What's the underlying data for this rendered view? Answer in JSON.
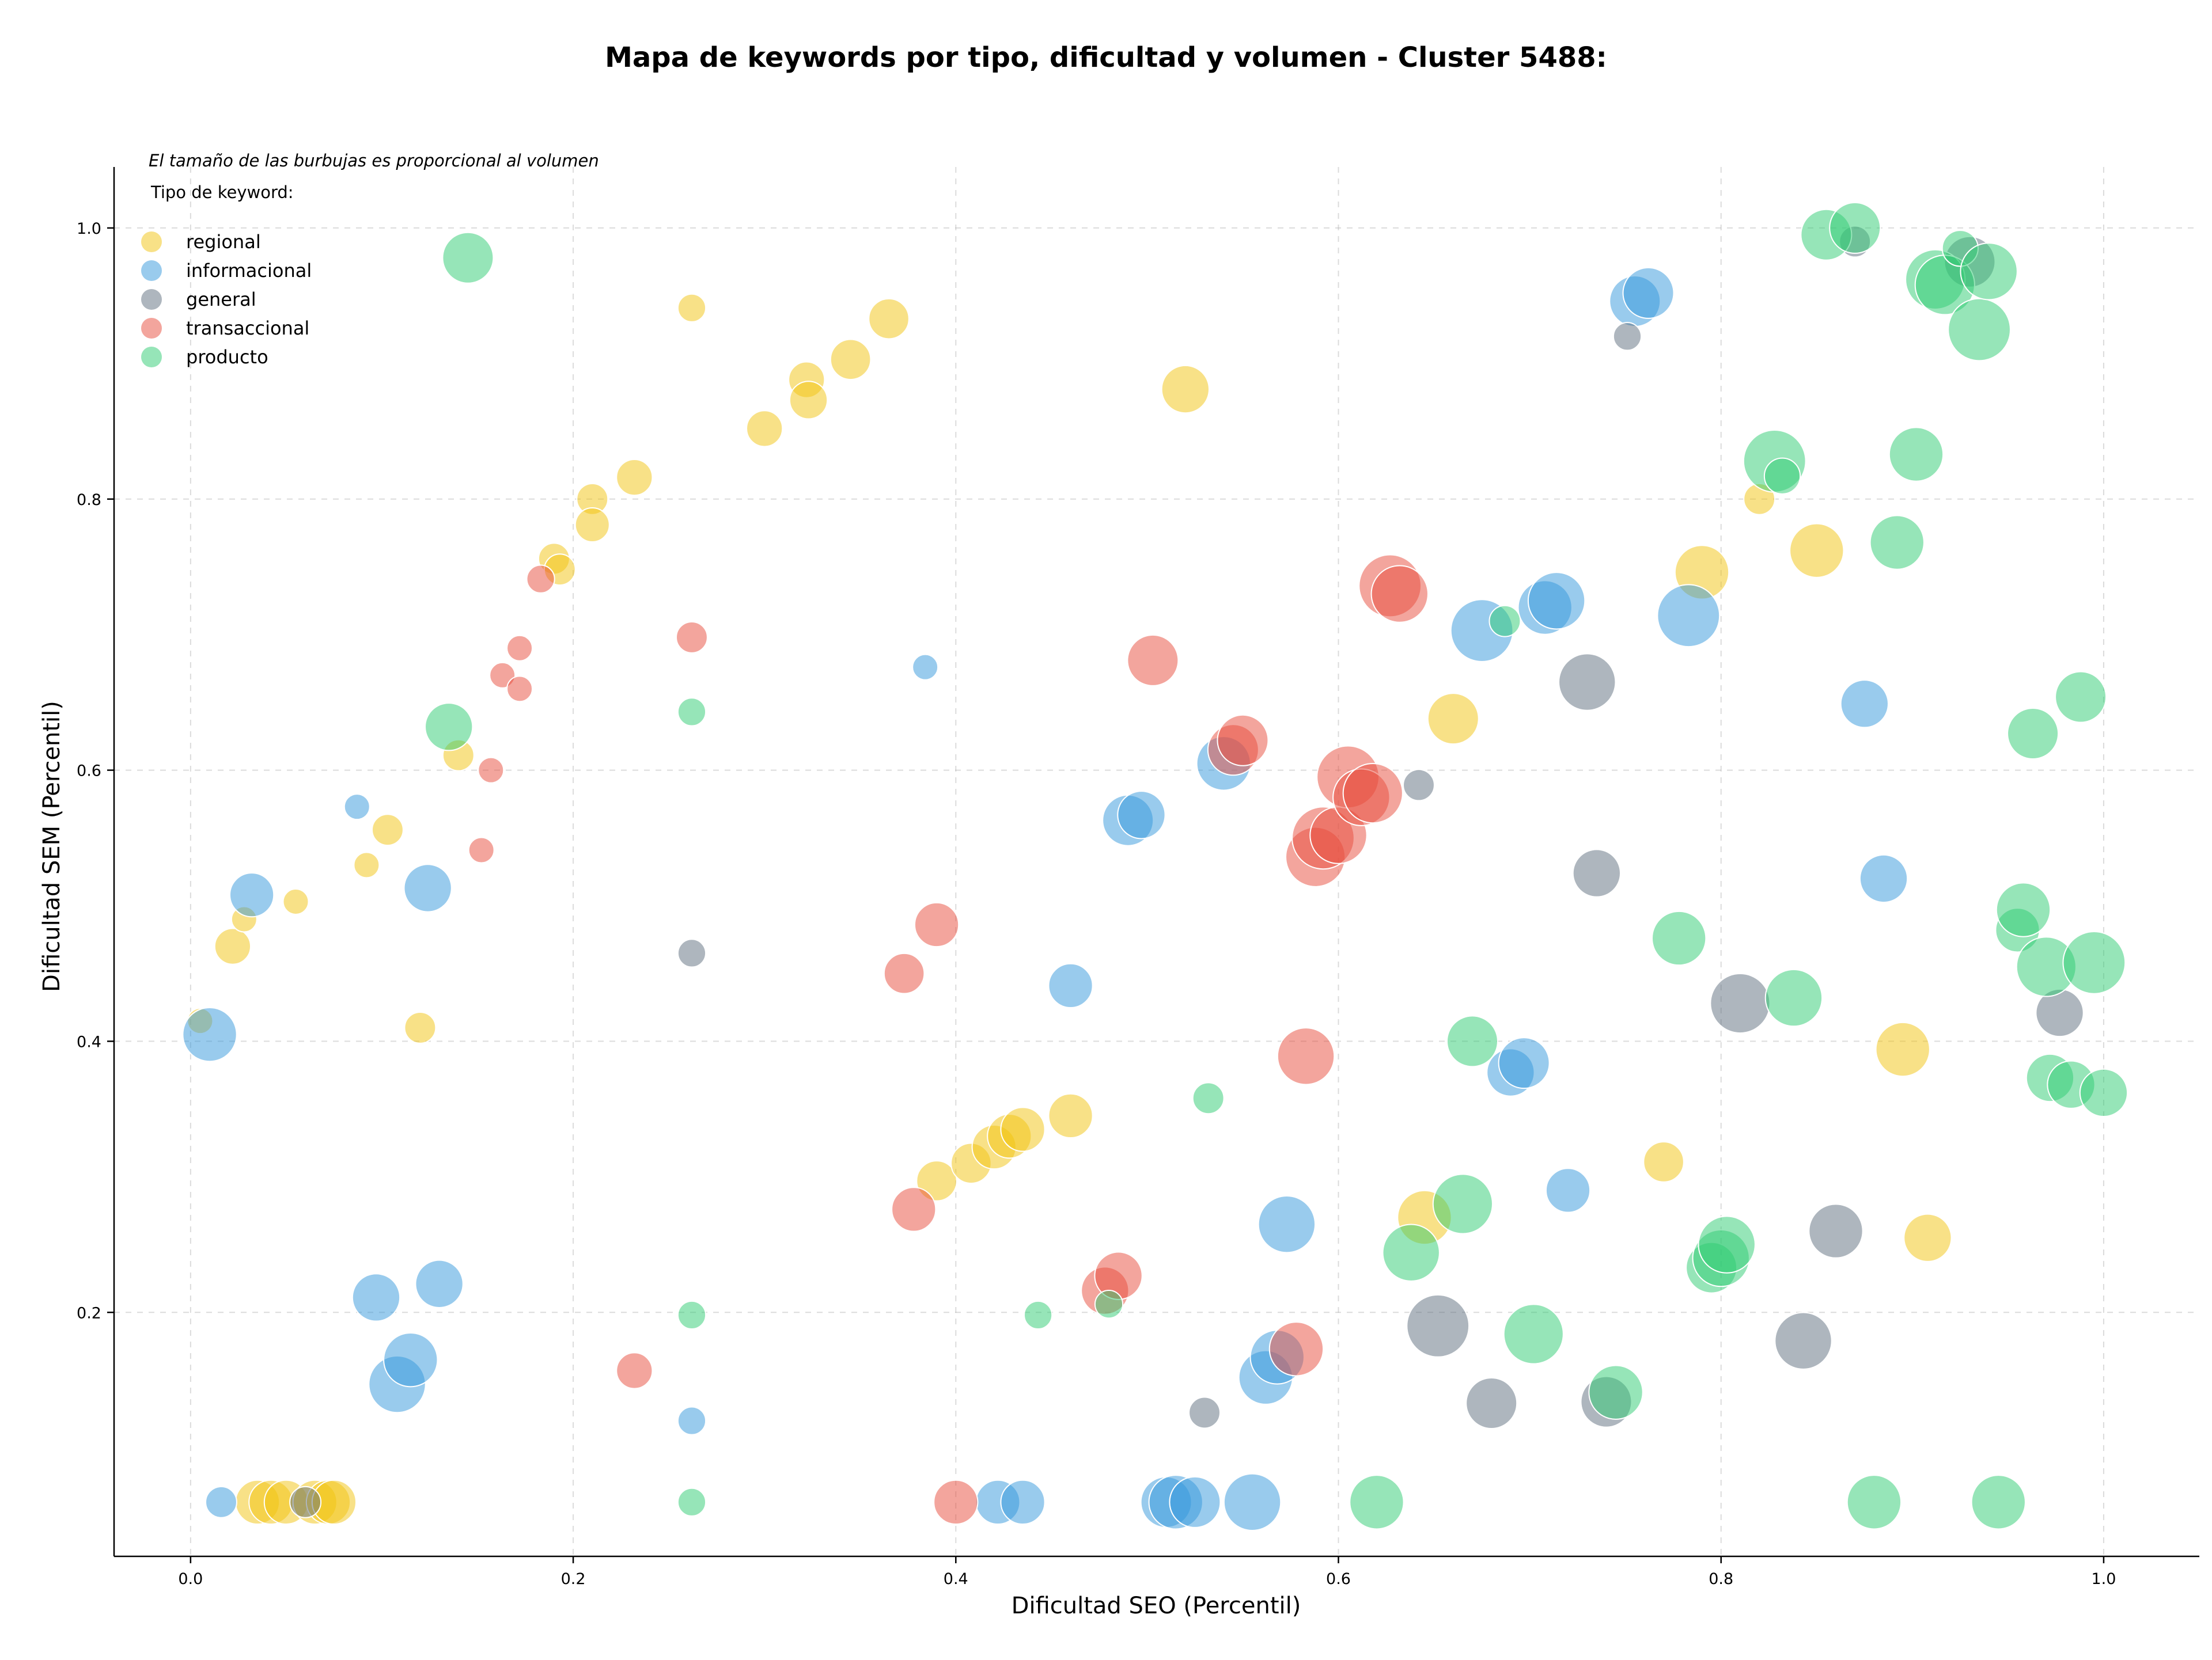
{
  "chart_data": {
    "type": "scatter",
    "title": "Mapa de keywords por tipo, dificultad y volumen - Cluster 5488:",
    "note": "El tamaño de las burbujas es proporcional al volumen",
    "xlabel": "Dificultad SEO (Percentil)",
    "ylabel": "Dificultad SEM (Percentil)",
    "xlim": [
      -0.04,
      1.05
    ],
    "ylim": [
      0.02,
      1.045
    ],
    "xticks": [
      "0.0",
      "0.2",
      "0.4",
      "0.6",
      "0.8",
      "1.0"
    ],
    "yticks": [
      "0.2",
      "0.4",
      "0.6",
      "0.8",
      "1.0"
    ],
    "grid": true,
    "legend": {
      "title": "Tipo de keyword:",
      "placement": "top-left",
      "items": [
        "regional",
        "informacional",
        "general",
        "transaccional",
        "producto"
      ]
    },
    "colors": {
      "regional": "#f1c40f",
      "informacional": "#3498db",
      "general": "#5d6d7e",
      "transaccional": "#e74c3c",
      "producto": "#2ecc71"
    },
    "series": [
      {
        "name": "regional",
        "points": [
          [
            0.005,
            0.415,
            1
          ],
          [
            0.022,
            0.47,
            2
          ],
          [
            0.028,
            0.49,
            1
          ],
          [
            0.055,
            0.503,
            1
          ],
          [
            0.092,
            0.53,
            1
          ],
          [
            0.103,
            0.556,
            1.5
          ],
          [
            0.12,
            0.41,
            1.5
          ],
          [
            0.14,
            0.611,
            1.5
          ],
          [
            0.19,
            0.756,
            1.5
          ],
          [
            0.193,
            0.748,
            1.5
          ],
          [
            0.21,
            0.8,
            1.5
          ],
          [
            0.21,
            0.781,
            1.8
          ],
          [
            0.232,
            0.816,
            2
          ],
          [
            0.262,
            0.941,
            1.2
          ],
          [
            0.3,
            0.852,
            2
          ],
          [
            0.322,
            0.888,
            2
          ],
          [
            0.323,
            0.873,
            2.2
          ],
          [
            0.345,
            0.903,
            2.5
          ],
          [
            0.365,
            0.933,
            2.5
          ],
          [
            0.52,
            0.881,
            3.5
          ],
          [
            0.39,
            0.297,
            2.5
          ],
          [
            0.408,
            0.31,
            2.5
          ],
          [
            0.42,
            0.322,
            3
          ],
          [
            0.428,
            0.33,
            3
          ],
          [
            0.435,
            0.335,
            3
          ],
          [
            0.46,
            0.345,
            3
          ],
          [
            0.035,
            0.06,
            3
          ],
          [
            0.042,
            0.06,
            3
          ],
          [
            0.05,
            0.06,
            3
          ],
          [
            0.065,
            0.06,
            3
          ],
          [
            0.072,
            0.06,
            3
          ],
          [
            0.075,
            0.06,
            3
          ],
          [
            0.645,
            0.27,
            4.5
          ],
          [
            0.66,
            0.638,
            4
          ],
          [
            0.77,
            0.311,
            2.5
          ],
          [
            0.79,
            0.746,
            4.5
          ],
          [
            0.82,
            0.8,
            1.5
          ],
          [
            0.85,
            0.762,
            4.5
          ],
          [
            0.895,
            0.394,
            4.5
          ],
          [
            0.908,
            0.255,
            3.5
          ]
        ]
      },
      {
        "name": "informacional",
        "points": [
          [
            0.01,
            0.405,
            4.5
          ],
          [
            0.016,
            0.06,
            1.5
          ],
          [
            0.032,
            0.508,
            3
          ],
          [
            0.087,
            0.573,
            1
          ],
          [
            0.097,
            0.211,
            3.5
          ],
          [
            0.108,
            0.147,
            5
          ],
          [
            0.115,
            0.165,
            4.5
          ],
          [
            0.124,
            0.513,
            3.5
          ],
          [
            0.13,
            0.221,
            3.5
          ],
          [
            0.262,
            0.12,
            1.2
          ],
          [
            0.384,
            0.676,
            1
          ],
          [
            0.422,
            0.06,
            3
          ],
          [
            0.435,
            0.06,
            3
          ],
          [
            0.46,
            0.441,
            3
          ],
          [
            0.49,
            0.563,
            4
          ],
          [
            0.497,
            0.567,
            3.5
          ],
          [
            0.51,
            0.06,
            4
          ],
          [
            0.515,
            0.06,
            4.5
          ],
          [
            0.525,
            0.06,
            4
          ],
          [
            0.54,
            0.605,
            4.5
          ],
          [
            0.555,
            0.06,
            5
          ],
          [
            0.562,
            0.152,
            4.5
          ],
          [
            0.568,
            0.167,
            4.5
          ],
          [
            0.573,
            0.265,
            5
          ],
          [
            0.675,
            0.703,
            6
          ],
          [
            0.69,
            0.377,
            3.5
          ],
          [
            0.697,
            0.384,
            4
          ],
          [
            0.708,
            0.72,
            4.5
          ],
          [
            0.714,
            0.725,
            5
          ],
          [
            0.72,
            0.29,
            3
          ],
          [
            0.755,
            0.946,
            4
          ],
          [
            0.762,
            0.952,
            4
          ],
          [
            0.783,
            0.714,
            6
          ],
          [
            0.875,
            0.649,
            3.5
          ],
          [
            0.885,
            0.52,
            3.5
          ]
        ]
      },
      {
        "name": "general",
        "points": [
          [
            0.06,
            0.06,
            1.5
          ],
          [
            0.262,
            0.465,
            1.2
          ],
          [
            0.53,
            0.126,
            1.5
          ],
          [
            0.642,
            0.589,
            1.5
          ],
          [
            0.652,
            0.19,
            6
          ],
          [
            0.68,
            0.133,
            4
          ],
          [
            0.73,
            0.665,
            5
          ],
          [
            0.735,
            0.524,
            3.5
          ],
          [
            0.74,
            0.134,
            4
          ],
          [
            0.751,
            0.92,
            1.2
          ],
          [
            0.81,
            0.428,
            5.5
          ],
          [
            0.843,
            0.179,
            5
          ],
          [
            0.86,
            0.26,
            4.5
          ],
          [
            0.87,
            0.99,
            1.5
          ],
          [
            0.93,
            0.975,
            4
          ],
          [
            0.977,
            0.421,
            3.5
          ]
        ]
      },
      {
        "name": "transaccional",
        "points": [
          [
            0.152,
            0.541,
            1
          ],
          [
            0.157,
            0.6,
            1
          ],
          [
            0.163,
            0.67,
            1
          ],
          [
            0.172,
            0.69,
            1
          ],
          [
            0.172,
            0.66,
            1
          ],
          [
            0.183,
            0.741,
            1.2
          ],
          [
            0.232,
            0.157,
            2
          ],
          [
            0.262,
            0.698,
            1.5
          ],
          [
            0.373,
            0.45,
            2.5
          ],
          [
            0.378,
            0.276,
            3
          ],
          [
            0.39,
            0.486,
            3
          ],
          [
            0.4,
            0.06,
            3
          ],
          [
            0.478,
            0.216,
            3.5
          ],
          [
            0.485,
            0.227,
            3.5
          ],
          [
            0.503,
            0.681,
            4
          ],
          [
            0.545,
            0.615,
            4
          ],
          [
            0.55,
            0.622,
            4
          ],
          [
            0.578,
            0.173,
            4.5
          ],
          [
            0.583,
            0.389,
            5
          ],
          [
            0.588,
            0.536,
            5.5
          ],
          [
            0.592,
            0.55,
            6
          ],
          [
            0.6,
            0.552,
            5
          ],
          [
            0.605,
            0.595,
            6
          ],
          [
            0.612,
            0.58,
            5
          ],
          [
            0.618,
            0.583,
            5.5
          ],
          [
            0.627,
            0.736,
            6
          ],
          [
            0.632,
            0.73,
            5
          ]
        ]
      },
      {
        "name": "producto",
        "points": [
          [
            0.145,
            0.978,
            4
          ],
          [
            0.135,
            0.632,
            3.5
          ],
          [
            0.262,
            0.643,
            1.2
          ],
          [
            0.262,
            0.198,
            1.2
          ],
          [
            0.262,
            0.06,
            1.2
          ],
          [
            0.443,
            0.198,
            1.2
          ],
          [
            0.48,
            0.206,
            1.2
          ],
          [
            0.532,
            0.358,
            1.5
          ],
          [
            0.62,
            0.06,
            4.5
          ],
          [
            0.638,
            0.244,
            5
          ],
          [
            0.665,
            0.28,
            5.5
          ],
          [
            0.67,
            0.4,
            4
          ],
          [
            0.687,
            0.71,
            1.5
          ],
          [
            0.702,
            0.184,
            5.5
          ],
          [
            0.745,
            0.141,
            4.5
          ],
          [
            0.778,
            0.476,
            4.5
          ],
          [
            0.795,
            0.233,
            4
          ],
          [
            0.8,
            0.24,
            5
          ],
          [
            0.803,
            0.25,
            5
          ],
          [
            0.828,
            0.828,
            6
          ],
          [
            0.832,
            0.817,
            2
          ],
          [
            0.838,
            0.432,
            5
          ],
          [
            0.855,
            0.995,
            4
          ],
          [
            0.87,
            1.0,
            4
          ],
          [
            0.88,
            0.06,
            4.5
          ],
          [
            0.892,
            0.768,
            4.5
          ],
          [
            0.902,
            0.833,
            4.5
          ],
          [
            0.912,
            0.962,
            5.5
          ],
          [
            0.917,
            0.958,
            5.5
          ],
          [
            0.925,
            0.985,
            2
          ],
          [
            0.935,
            0.925,
            6
          ],
          [
            0.94,
            0.968,
            5
          ],
          [
            0.945,
            0.06,
            4.5
          ],
          [
            0.955,
            0.482,
            3
          ],
          [
            0.958,
            0.497,
            4.5
          ],
          [
            0.963,
            0.627,
            4
          ],
          [
            0.97,
            0.455,
            5.5
          ],
          [
            0.972,
            0.373,
            3.5
          ],
          [
            0.983,
            0.368,
            3.5
          ],
          [
            0.988,
            0.654,
            4
          ],
          [
            0.995,
            0.458,
            6
          ],
          [
            1.0,
            0.362,
            3.5
          ]
        ]
      }
    ]
  }
}
